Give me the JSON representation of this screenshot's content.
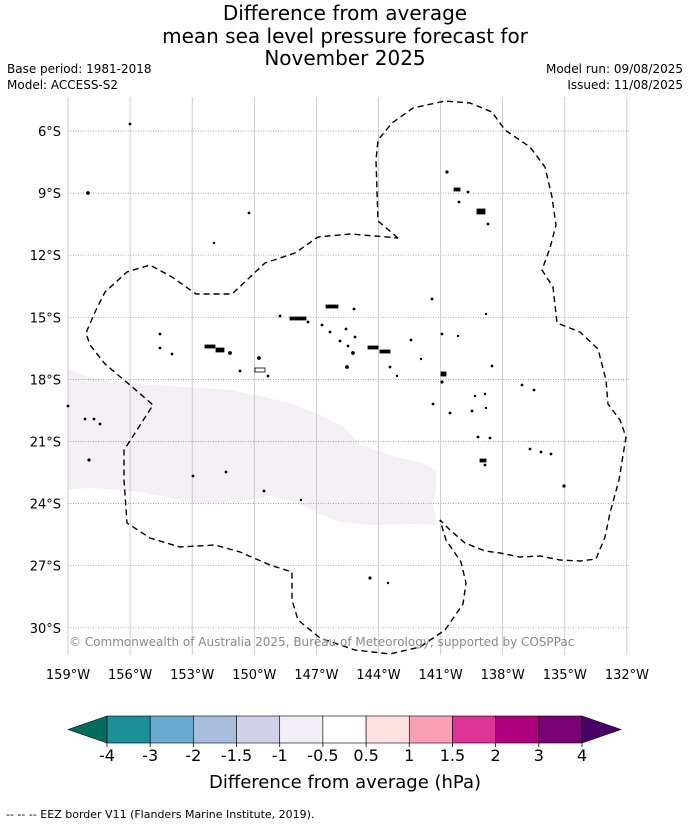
{
  "title": {
    "line1": "Difference from average",
    "line2": "mean sea level pressure forecast for",
    "line3": "November 2025"
  },
  "meta": {
    "base_period": "Base period: 1981-2018",
    "model": "Model: ACCESS-S2",
    "model_run": "Model run: 09/08/2025",
    "issued": "Issued: 11/08/2025"
  },
  "map": {
    "lat_labels": [
      "6°S",
      "9°S",
      "12°S",
      "15°S",
      "18°S",
      "21°S",
      "24°S",
      "27°S",
      "30°S"
    ],
    "lon_labels": [
      "159°W",
      "156°W",
      "153°W",
      "150°W",
      "147°W",
      "144°W",
      "141°W",
      "138°W",
      "135°W",
      "132°W"
    ],
    "copyright": "© Commonwealth of Australia 2025, Bureau of Meteorology, supported by COSPPac",
    "anomaly_fill_color": "#f3eff5",
    "land_color": "#000000",
    "eez_border_style": "dashed"
  },
  "colorbar": {
    "label": "Difference from average (hPa)",
    "ticks": [
      "-4",
      "-3",
      "-2",
      "-1.5",
      "-1",
      "-0.5",
      "0.5",
      "1",
      "1.5",
      "2",
      "3",
      "4"
    ],
    "low_extend_color": "#016c59",
    "high_extend_color": "#49006a",
    "colors": [
      "#1c9099",
      "#67a9cf",
      "#a6bddb",
      "#d0d1e6",
      "#f1eef6",
      "#ffffff",
      "#fde0dd",
      "#fa9fb5",
      "#dd3497",
      "#ae017e",
      "#7a0177"
    ]
  },
  "footnote": "--  --  -- EEZ border V11 (Flanders Marine Institute, 2019)."
}
